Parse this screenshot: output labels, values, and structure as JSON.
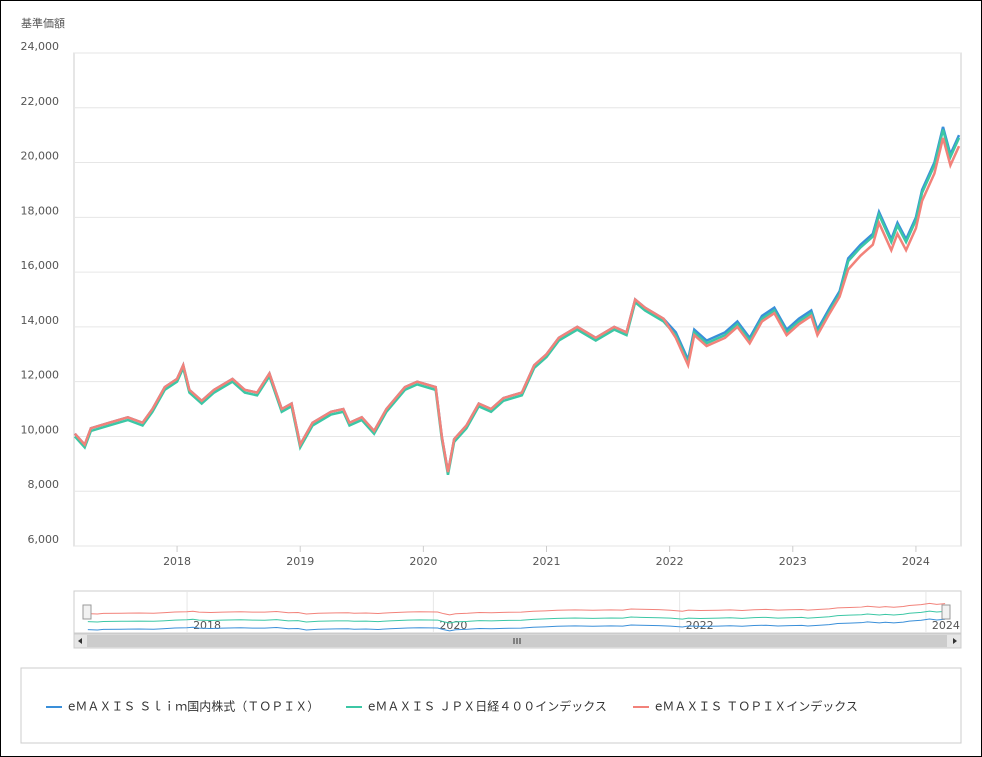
{
  "chart_data": {
    "type": "line",
    "ylabel": "基準価額",
    "x": [
      2017.17,
      2017.25,
      2017.3,
      2017.45,
      2017.6,
      2017.72,
      2017.8,
      2017.9,
      2018.0,
      2018.05,
      2018.1,
      2018.2,
      2018.3,
      2018.45,
      2018.55,
      2018.65,
      2018.75,
      2018.85,
      2018.93,
      2019.0,
      2019.1,
      2019.25,
      2019.35,
      2019.4,
      2019.5,
      2019.6,
      2019.7,
      2019.85,
      2019.95,
      2020.1,
      2020.15,
      2020.2,
      2020.25,
      2020.35,
      2020.45,
      2020.55,
      2020.65,
      2020.8,
      2020.9,
      2021.0,
      2021.1,
      2021.25,
      2021.4,
      2021.55,
      2021.65,
      2021.72,
      2021.8,
      2021.95,
      2022.05,
      2022.15,
      2022.2,
      2022.3,
      2022.45,
      2022.55,
      2022.65,
      2022.75,
      2022.85,
      2022.95,
      2023.05,
      2023.15,
      2023.2,
      2023.3,
      2023.38,
      2023.45,
      2023.55,
      2023.65,
      2023.7,
      2023.8,
      2023.85,
      2023.92,
      2024.0,
      2024.05,
      2024.15,
      2024.22,
      2024.28,
      2024.35
    ],
    "series": [
      {
        "name": "eＭＡＸＩＳ Ｓｌｉｍ国内株式（ＴＯＰＩＸ）",
        "color": "#3a8fd9",
        "values": [
          10100,
          9700,
          10300,
          10500,
          10700,
          10500,
          11000,
          11800,
          12100,
          12600,
          11700,
          11300,
          11700,
          12100,
          11700,
          11600,
          12300,
          11000,
          11200,
          9700,
          10500,
          10900,
          11000,
          10500,
          10700,
          10200,
          11000,
          11800,
          12000,
          11800,
          10000,
          8700,
          9900,
          10400,
          11200,
          11000,
          11400,
          11600,
          12600,
          13000,
          13600,
          14000,
          13600,
          14000,
          13800,
          15000,
          14700,
          14300,
          13800,
          12800,
          13900,
          13500,
          13800,
          14200,
          13600,
          14400,
          14700,
          13900,
          14300,
          14600,
          13900,
          14700,
          15300,
          16500,
          17000,
          17400,
          18200,
          17200,
          17800,
          17200,
          18000,
          19000,
          20000,
          21300,
          20300,
          21000
        ]
      },
      {
        "name": "eＭＡＸＩＳ ＪＰＸ日経４００インデックス",
        "color": "#3cc7a5",
        "values": [
          10000,
          9600,
          10200,
          10400,
          10600,
          10400,
          10900,
          11700,
          12000,
          12500,
          11600,
          11200,
          11600,
          12000,
          11600,
          11500,
          12200,
          10900,
          11100,
          9600,
          10400,
          10800,
          10900,
          10400,
          10600,
          10100,
          10900,
          11700,
          11900,
          11700,
          9900,
          8600,
          9800,
          10300,
          11100,
          10900,
          11300,
          11500,
          12500,
          12900,
          13500,
          13900,
          13500,
          13900,
          13700,
          14900,
          14600,
          14200,
          13700,
          12700,
          13800,
          13400,
          13700,
          14100,
          13500,
          14300,
          14600,
          13800,
          14200,
          14500,
          13800,
          14600,
          15200,
          16400,
          16900,
          17300,
          18100,
          17100,
          17700,
          17100,
          17900,
          18900,
          19900,
          21200,
          20200,
          20900
        ]
      },
      {
        "name": "eＭＡＸＩＳ ＴＯＰＩＸインデックス",
        "color": "#f2827a",
        "values": [
          10100,
          9700,
          10300,
          10500,
          10700,
          10500,
          11000,
          11800,
          12100,
          12600,
          11700,
          11300,
          11700,
          12100,
          11700,
          11600,
          12300,
          11000,
          11200,
          9700,
          10500,
          10900,
          11000,
          10500,
          10700,
          10200,
          11000,
          11800,
          12000,
          11800,
          10000,
          8700,
          9900,
          10400,
          11200,
          11000,
          11400,
          11600,
          12600,
          13000,
          13600,
          14000,
          13600,
          14000,
          13800,
          15000,
          14700,
          14300,
          13600,
          12600,
          13700,
          13300,
          13600,
          14000,
          13400,
          14200,
          14500,
          13700,
          14100,
          14400,
          13700,
          14500,
          15100,
          16100,
          16600,
          17000,
          17800,
          16800,
          17400,
          16800,
          17600,
          18600,
          19600,
          20900,
          19900,
          20600
        ]
      }
    ],
    "xlim": [
      2017.163,
      2024.366
    ],
    "xticks": [
      2018,
      2019,
      2020,
      2021,
      2022,
      2023,
      2024
    ],
    "ylim": [
      6000,
      24000
    ],
    "yticks": [
      {
        "value": 6000,
        "label": "6,000"
      },
      {
        "value": 8000,
        "label": "8,000"
      },
      {
        "value": 10000,
        "label": "10,000"
      },
      {
        "value": 12000,
        "label": "12,000"
      },
      {
        "value": 14000,
        "label": "14,000"
      },
      {
        "value": 16000,
        "label": "16,000"
      },
      {
        "value": 18000,
        "label": "18,000"
      },
      {
        "value": 20000,
        "label": "20,000"
      },
      {
        "value": 22000,
        "label": "22,000"
      },
      {
        "value": 24000,
        "label": "24,000"
      }
    ],
    "grid": true
  }
}
